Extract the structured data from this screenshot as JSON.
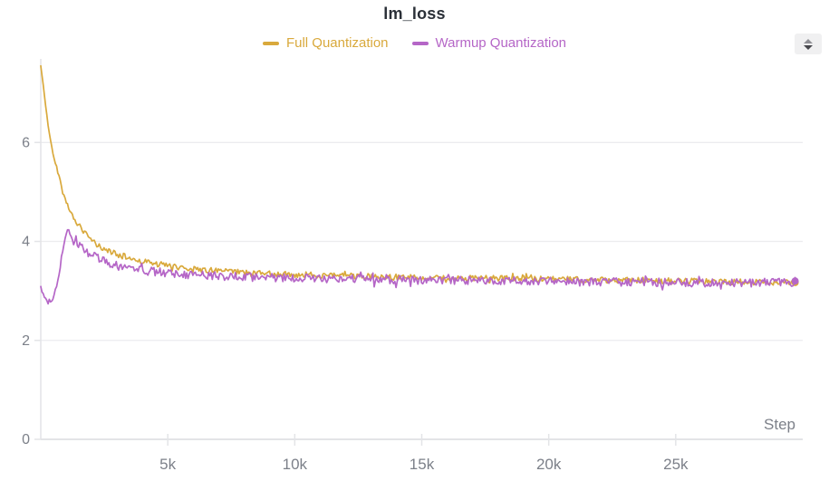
{
  "panel": {
    "title": "lm_loss",
    "stepper_icon": "up-down-arrows"
  },
  "chart_data": {
    "type": "line",
    "title": "lm_loss",
    "xlabel": "Step",
    "ylabel": "",
    "xlim": [
      0,
      30000
    ],
    "ylim": [
      0,
      7.69
    ],
    "grid": "horizontal",
    "legend_position": "top-center",
    "x_ticks": [
      {
        "value": 5000,
        "label": "5k"
      },
      {
        "value": 10000,
        "label": "10k"
      },
      {
        "value": 15000,
        "label": "15k"
      },
      {
        "value": 20000,
        "label": "20k"
      },
      {
        "value": 25000,
        "label": "25k"
      }
    ],
    "y_ticks": [
      {
        "value": 0,
        "label": "0"
      },
      {
        "value": 2,
        "label": "2"
      },
      {
        "value": 4,
        "label": "4"
      },
      {
        "value": 6,
        "label": "6"
      }
    ],
    "colors": {
      "axis": "#e3e4e7",
      "gridline": "#ececef",
      "tick_label": "#7c8089",
      "title": "#2b3038"
    },
    "series": [
      {
        "name": "Full Quantization",
        "color": "#d9a93c",
        "noise": 0.06,
        "points": [
          [
            0,
            7.55
          ],
          [
            100,
            7.15
          ],
          [
            200,
            6.7
          ],
          [
            300,
            6.3
          ],
          [
            400,
            6.0
          ],
          [
            500,
            5.75
          ],
          [
            600,
            5.55
          ],
          [
            700,
            5.35
          ],
          [
            800,
            5.15
          ],
          [
            900,
            4.95
          ],
          [
            1000,
            4.8
          ],
          [
            1100,
            4.68
          ],
          [
            1200,
            4.57
          ],
          [
            1400,
            4.4
          ],
          [
            1600,
            4.26
          ],
          [
            1800,
            4.12
          ],
          [
            2000,
            4.02
          ],
          [
            2300,
            3.9
          ],
          [
            2600,
            3.82
          ],
          [
            3000,
            3.74
          ],
          [
            3500,
            3.66
          ],
          [
            4000,
            3.6
          ],
          [
            4500,
            3.55
          ],
          [
            5000,
            3.51
          ],
          [
            6000,
            3.44
          ],
          [
            7000,
            3.4
          ],
          [
            8000,
            3.37
          ],
          [
            9000,
            3.35
          ],
          [
            10000,
            3.33
          ],
          [
            12000,
            3.3
          ],
          [
            14000,
            3.28
          ],
          [
            16000,
            3.26
          ],
          [
            18000,
            3.25
          ],
          [
            20000,
            3.24
          ],
          [
            22000,
            3.22
          ],
          [
            24000,
            3.21
          ],
          [
            26000,
            3.19
          ],
          [
            28000,
            3.18
          ],
          [
            29700,
            3.17
          ]
        ]
      },
      {
        "name": "Warmup Quantization",
        "color": "#b566c7",
        "noise": 0.085,
        "points": [
          [
            0,
            3.05
          ],
          [
            150,
            2.86
          ],
          [
            300,
            2.78
          ],
          [
            450,
            2.83
          ],
          [
            550,
            2.95
          ],
          [
            650,
            3.15
          ],
          [
            750,
            3.45
          ],
          [
            850,
            3.8
          ],
          [
            950,
            4.1
          ],
          [
            1050,
            4.25
          ],
          [
            1150,
            4.18
          ],
          [
            1250,
            4.08
          ],
          [
            1400,
            3.98
          ],
          [
            1600,
            3.88
          ],
          [
            1800,
            3.8
          ],
          [
            2000,
            3.73
          ],
          [
            2300,
            3.64
          ],
          [
            2600,
            3.57
          ],
          [
            3000,
            3.51
          ],
          [
            3500,
            3.45
          ],
          [
            4000,
            3.41
          ],
          [
            5000,
            3.36
          ],
          [
            6000,
            3.32
          ],
          [
            7000,
            3.3
          ],
          [
            8000,
            3.28
          ],
          [
            10000,
            3.26
          ],
          [
            12000,
            3.24
          ],
          [
            15000,
            3.22
          ],
          [
            18000,
            3.2
          ],
          [
            20000,
            3.19
          ],
          [
            22000,
            3.18
          ],
          [
            25000,
            3.17
          ],
          [
            28000,
            3.16
          ],
          [
            29700,
            3.2
          ]
        ]
      }
    ]
  }
}
